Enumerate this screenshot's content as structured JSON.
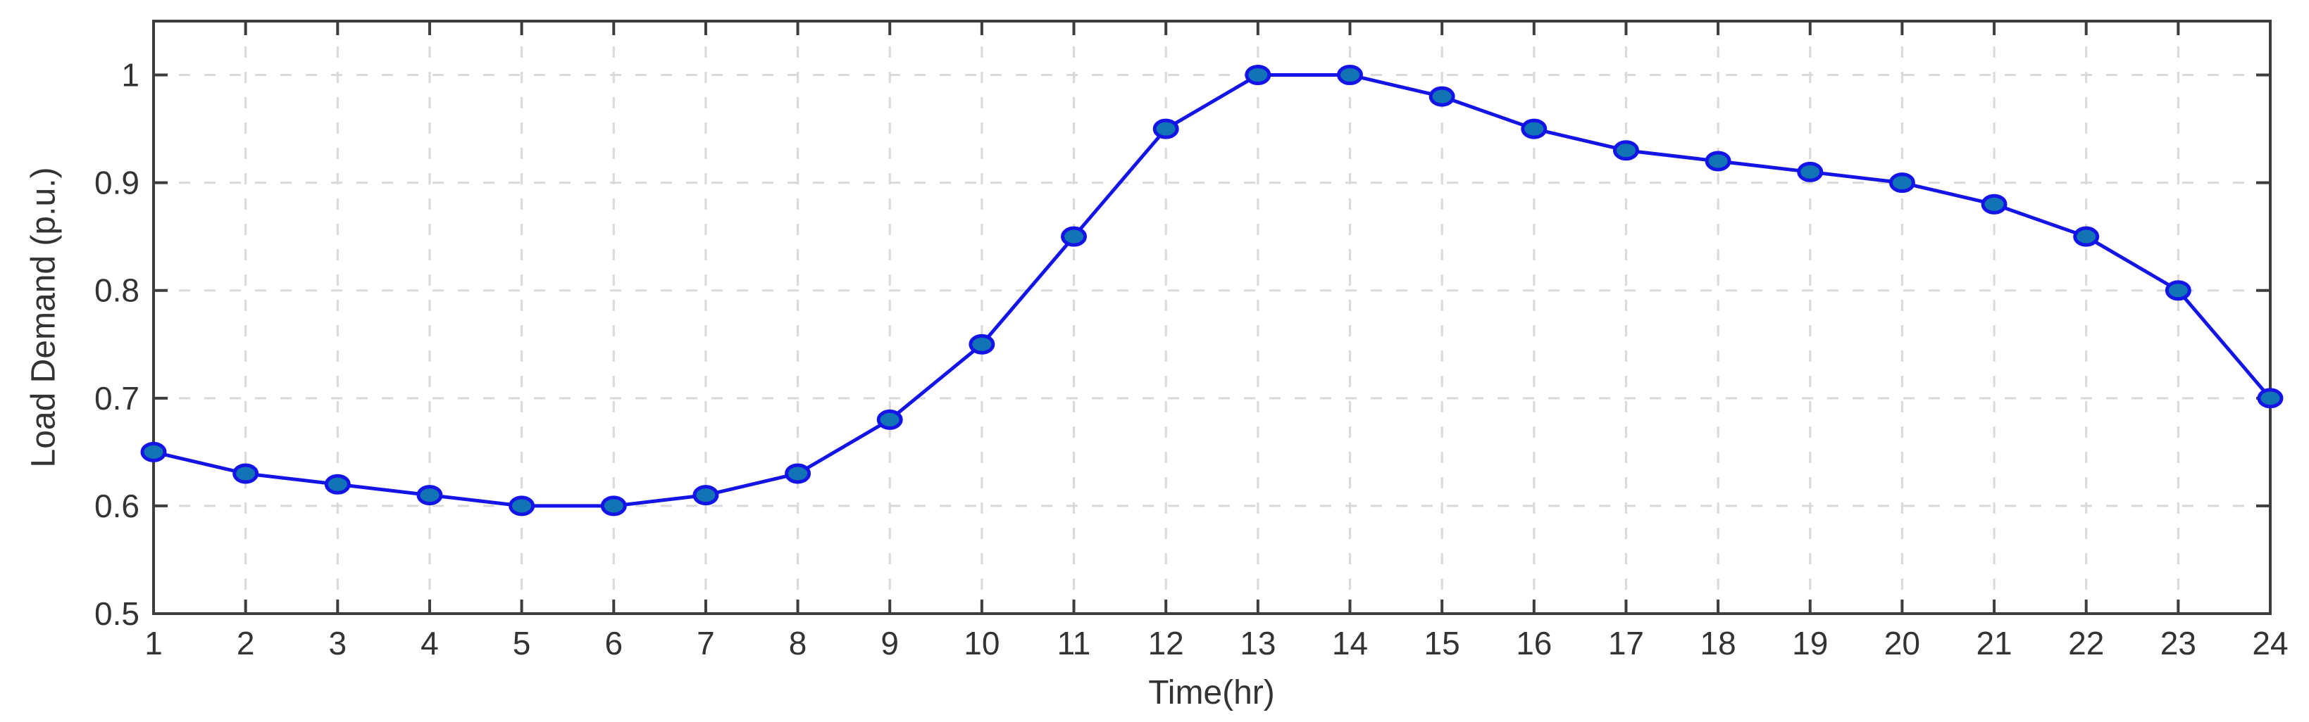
{
  "chart_data": {
    "type": "line",
    "title": "",
    "xlabel": "Time(hr)",
    "ylabel": "Load Demand (p.u.)",
    "x": [
      1,
      2,
      3,
      4,
      5,
      6,
      7,
      8,
      9,
      10,
      11,
      12,
      13,
      14,
      15,
      16,
      17,
      18,
      19,
      20,
      21,
      22,
      23,
      24
    ],
    "y": [
      0.65,
      0.63,
      0.62,
      0.61,
      0.6,
      0.6,
      0.61,
      0.63,
      0.68,
      0.75,
      0.85,
      0.95,
      1.0,
      1.0,
      0.98,
      0.95,
      0.93,
      0.92,
      0.91,
      0.9,
      0.88,
      0.85,
      0.8,
      0.7
    ],
    "xlim": [
      1,
      24
    ],
    "ylim": [
      0.5,
      1.05
    ],
    "xticks": [
      1,
      2,
      3,
      4,
      5,
      6,
      7,
      8,
      9,
      10,
      11,
      12,
      13,
      14,
      15,
      16,
      17,
      18,
      19,
      20,
      21,
      22,
      23,
      24
    ],
    "xtick_labels": [
      "1",
      "2",
      "3",
      "4",
      "5",
      "6",
      "7",
      "8",
      "9",
      "10",
      "11",
      "12",
      "13",
      "14",
      "15",
      "16",
      "17",
      "18",
      "19",
      "20",
      "21",
      "22",
      "23",
      "24"
    ],
    "yticks": [
      0.5,
      0.6,
      0.7,
      0.8,
      0.9,
      1.0
    ],
    "ytick_labels": [
      "0.5",
      "0.6",
      "0.7",
      "0.8",
      "0.9",
      "1"
    ],
    "grid": "dashed",
    "legend": "none",
    "colors": {
      "line": "#1414e6",
      "marker_face": "#1273b5",
      "marker_edge": "#1414e6",
      "grid": "#d9d9d9",
      "axis": "#3d3d3d",
      "tick_label": "#333333"
    }
  }
}
